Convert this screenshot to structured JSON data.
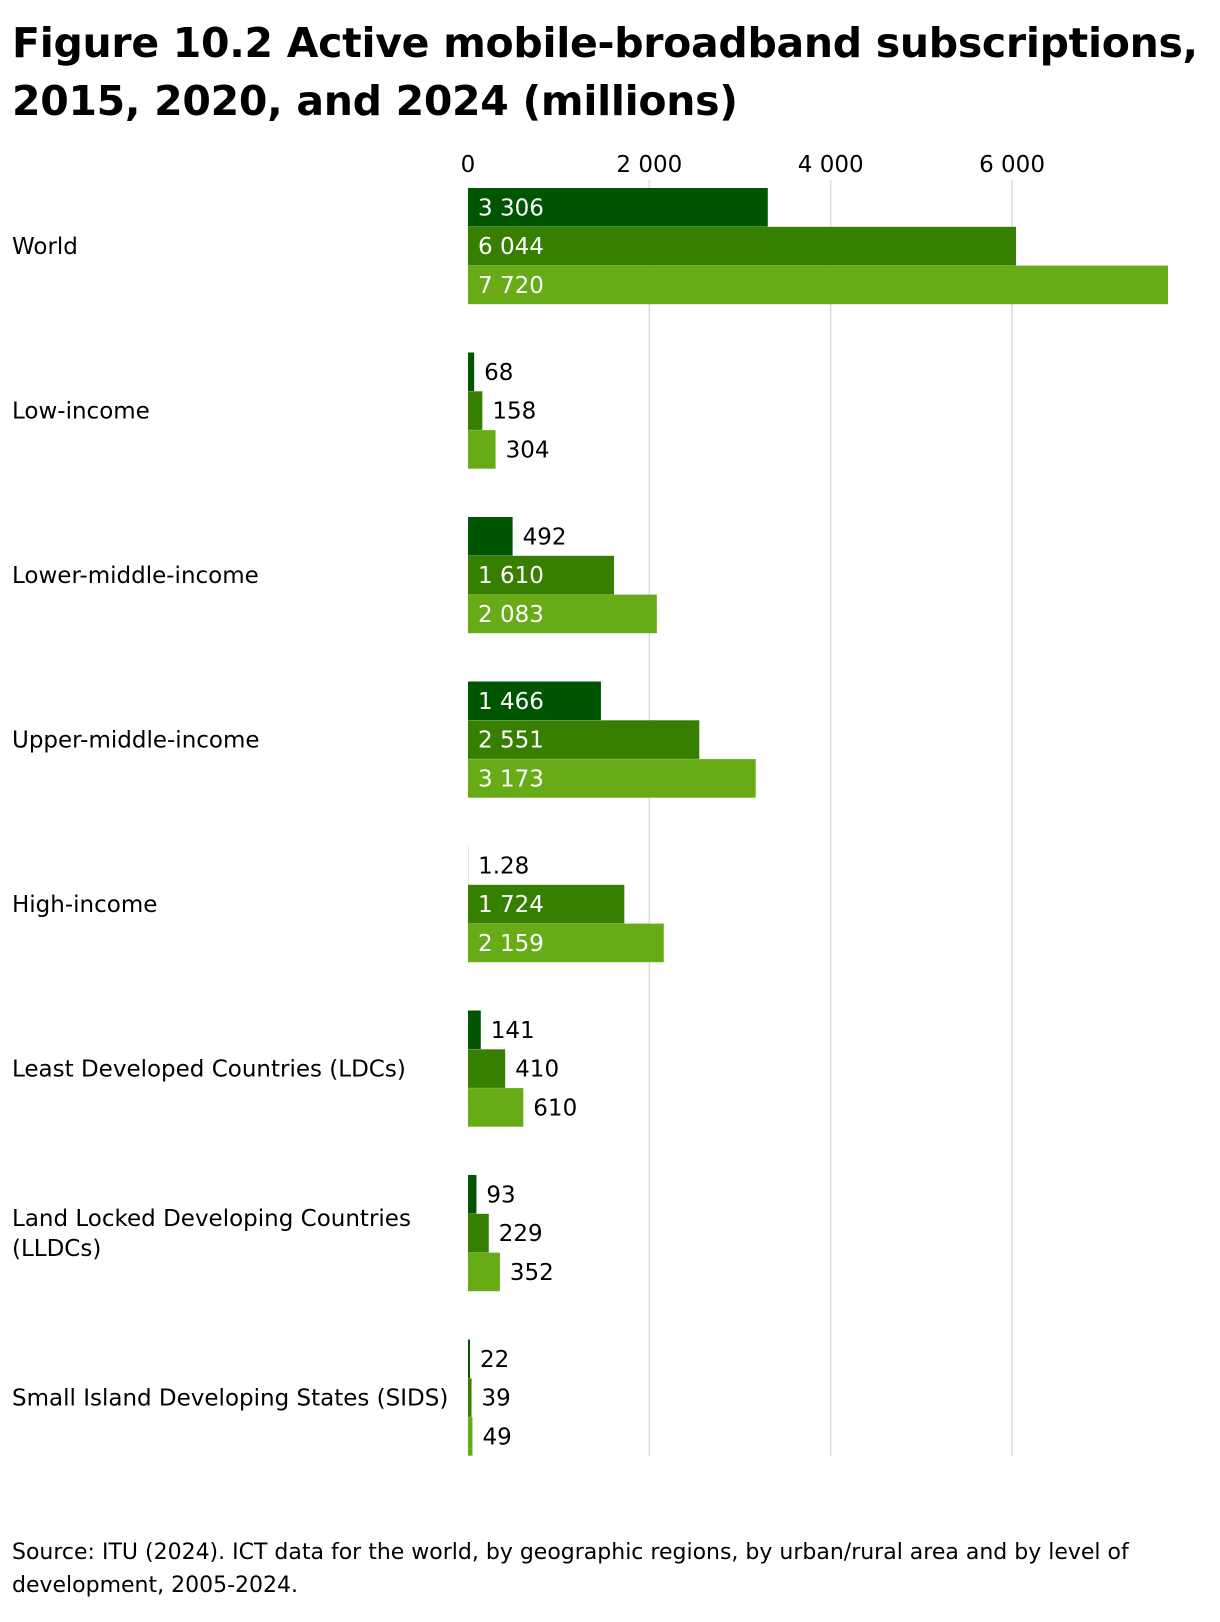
{
  "title": "Figure 10.2 Active mobile-broadband subscriptions, 2015, 2020, and 2024 (millions)",
  "source": "Source: ITU (2024). ICT data for the world, by geographic regions, by urban/rural area and by level of development, 2005-2024.",
  "chart_data": {
    "type": "bar",
    "orientation": "horizontal",
    "categories": [
      [
        "World"
      ],
      [
        "Low-income"
      ],
      [
        "Lower-middle-income"
      ],
      [
        "Upper-middle-income"
      ],
      [
        "High-income"
      ],
      [
        "Least Developed Countries (LDCs)"
      ],
      [
        "Land Locked Developing Countries",
        "(LLDCs)"
      ],
      [
        "Small Island Developing States (SIDS)"
      ]
    ],
    "series": [
      {
        "color": "#005500",
        "values": [
          3306,
          68,
          492,
          1466,
          1.28,
          141,
          93,
          22
        ],
        "labels": [
          "3 306",
          "68",
          "492",
          "1 466",
          "1.28",
          "141",
          "93",
          "22"
        ]
      },
      {
        "color": "#367f00",
        "values": [
          6044,
          158,
          1610,
          2551,
          1724,
          410,
          229,
          39
        ],
        "labels": [
          "6 044",
          "158",
          "1 610",
          "2 551",
          "1 724",
          "410",
          "229",
          "39"
        ]
      },
      {
        "color": "#67ab17",
        "values": [
          7720,
          304,
          2083,
          3173,
          2159,
          610,
          352,
          49
        ],
        "labels": [
          "7 720",
          "304",
          "2 083",
          "3 173",
          "2 159",
          "610",
          "352",
          "49"
        ]
      }
    ],
    "xticks": [
      0,
      2000,
      4000,
      6000
    ],
    "xtick_labels": [
      "0",
      "2 000",
      "4 000",
      "6 000"
    ],
    "xlim": [
      0,
      7720
    ],
    "axis_position": "top",
    "grid": true,
    "legend": "none"
  }
}
